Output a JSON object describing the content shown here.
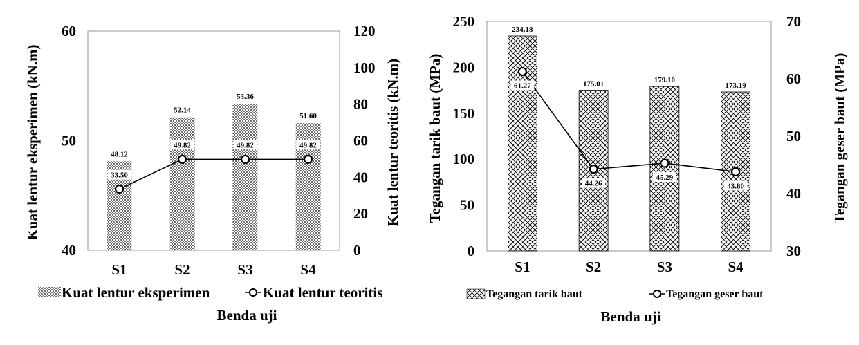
{
  "chart_data": [
    {
      "type": "bar+line",
      "categories": [
        "S1",
        "S2",
        "S3",
        "S4"
      ],
      "xlabel": "Benda uji",
      "ylabel_left": "Kuat lentur eksperimen (kN.m)",
      "ylabel_right": "Kuat lentur teoritis (kN.m)",
      "ylim_left": [
        40,
        60
      ],
      "yticks_left": [
        "40",
        "50",
        "60"
      ],
      "ylim_right": [
        0,
        120
      ],
      "yticks_right": [
        "0",
        "20",
        "40",
        "60",
        "80",
        "100",
        "120"
      ],
      "legend_position": "bottom",
      "series": [
        {
          "name": "Kuat lentur eksperimen",
          "kind": "bar",
          "axis": "left",
          "pattern": "dots",
          "values": [
            48.12,
            52.14,
            53.36,
            51.6
          ],
          "labels": [
            "48.12",
            "52.14",
            "53.36",
            "51.60"
          ]
        },
        {
          "name": "Kuat lentur teoritis",
          "kind": "line",
          "axis": "right",
          "marker": "open-circle",
          "values": [
            33.5,
            49.82,
            49.82,
            49.82
          ],
          "labels": [
            "33.50",
            "49.82",
            "49.82",
            "49.82"
          ]
        }
      ]
    },
    {
      "type": "bar+line",
      "categories": [
        "S1",
        "S2",
        "S3",
        "S4"
      ],
      "xlabel": "Benda uji",
      "ylabel_left": "Tegangan tarik baut (MPa)",
      "ylabel_right": "Tegangan geser baut (MPa)",
      "ylim_left": [
        0,
        250
      ],
      "yticks_left": [
        "0",
        "50",
        "100",
        "150",
        "200",
        "250"
      ],
      "ylim_right": [
        30,
        70
      ],
      "yticks_right": [
        "30",
        "40",
        "50",
        "60",
        "70"
      ],
      "legend_position": "bottom",
      "series": [
        {
          "name": "Tegangan tarik baut",
          "kind": "bar",
          "axis": "left",
          "pattern": "crosshatch",
          "values": [
            234.18,
            175.01,
            179.1,
            173.19
          ],
          "labels": [
            "234.18",
            "175.01",
            "179.10",
            "173.19"
          ]
        },
        {
          "name": "Tegangan geser baut",
          "kind": "line",
          "axis": "right",
          "marker": "open-circle",
          "values": [
            61.27,
            44.26,
            45.29,
            43.8
          ],
          "labels": [
            "61.27",
            "44.26",
            "45.29",
            "43.80"
          ]
        }
      ]
    }
  ]
}
